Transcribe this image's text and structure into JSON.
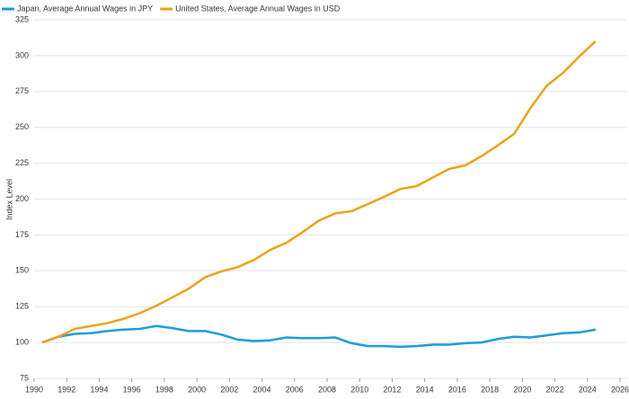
{
  "chart_data": {
    "type": "line",
    "x": [
      1990.5,
      1991.5,
      1992.5,
      1993.5,
      1994.5,
      1995.5,
      1996.5,
      1997.5,
      1998.5,
      1999.5,
      2000.5,
      2001.5,
      2002.5,
      2003.5,
      2004.5,
      2005.5,
      2006.5,
      2007.5,
      2008.5,
      2009.5,
      2010.5,
      2011.5,
      2012.5,
      2013.5,
      2014.5,
      2015.5,
      2016.5,
      2017.5,
      2018.5,
      2019.5,
      2020.5,
      2021.5,
      2022.5,
      2023.5,
      2024.5
    ],
    "series": [
      {
        "name": "Japan, Average Annual Wages in JPY",
        "color": "#1a9bd7",
        "values": [
          100,
          104,
          106,
          106.5,
          108,
          109,
          109.5,
          111.5,
          110,
          108,
          108,
          105.5,
          102,
          101,
          101.5,
          103.5,
          103,
          103,
          103.5,
          99.5,
          97.5,
          97.5,
          97,
          97.5,
          98.5,
          98.5,
          99.5,
          100,
          102.5,
          104,
          103.5,
          105,
          106.5,
          107,
          109
        ]
      },
      {
        "name": "United States, Average Annual Wages in USD",
        "color": "#e8a21a",
        "values": [
          100,
          104,
          109.5,
          111.5,
          113.5,
          116.5,
          120.5,
          125.5,
          131.5,
          137.5,
          145.5,
          149.5,
          152.5,
          157.5,
          164.5,
          169.5,
          177,
          185,
          190,
          191.5,
          196.5,
          201.5,
          207,
          209,
          215,
          221,
          223.5,
          230,
          237.5,
          245.5,
          263.5,
          279,
          288,
          299.5,
          310
        ]
      }
    ],
    "y_label": "Index Level",
    "xlim": [
      1990,
      2026
    ],
    "xticks": [
      1990,
      1992,
      1994,
      1996,
      1998,
      2000,
      2002,
      2004,
      2006,
      2008,
      2010,
      2012,
      2014,
      2016,
      2018,
      2020,
      2022,
      2024,
      2026
    ],
    "ylim": [
      75,
      325
    ],
    "yticks": [
      75,
      100,
      125,
      150,
      175,
      200,
      225,
      250,
      275,
      300,
      325
    ],
    "grid": true
  }
}
